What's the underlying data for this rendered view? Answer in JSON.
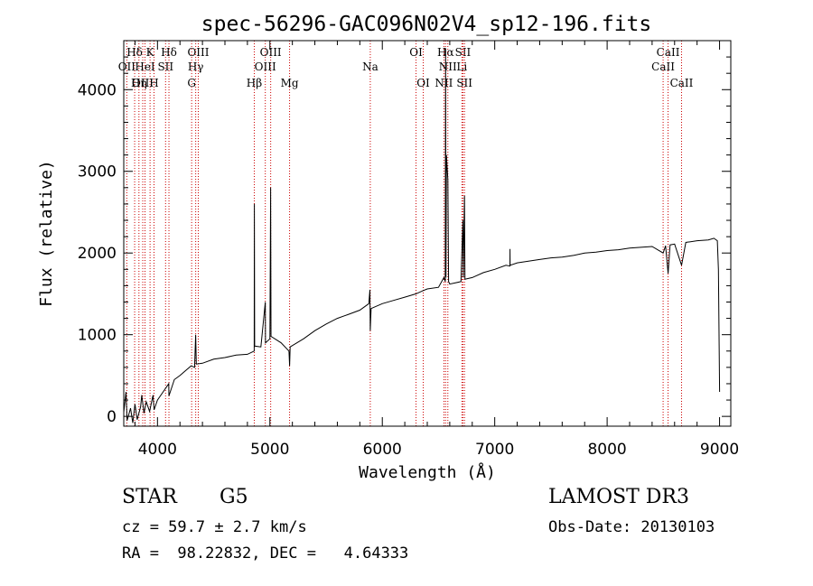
{
  "chart_data": {
    "type": "line",
    "title": "spec-56296-GAC096N02V4_sp12-196.fits",
    "xlabel": "Wavelength (Å)",
    "ylabel": "Flux (relative)",
    "xlim": [
      3700,
      9100
    ],
    "ylim": [
      -120,
      4600
    ],
    "x_ticks": [
      4000,
      5000,
      6000,
      7000,
      8000,
      9000
    ],
    "y_ticks": [
      0,
      1000,
      2000,
      3000,
      4000
    ],
    "grid": false,
    "series": [
      {
        "name": "spectrum",
        "points": [
          [
            3700,
            50
          ],
          [
            3720,
            300
          ],
          [
            3730,
            -50
          ],
          [
            3760,
            100
          ],
          [
            3780,
            -80
          ],
          [
            3800,
            150
          ],
          [
            3820,
            -40
          ],
          [
            3850,
            120
          ],
          [
            3860,
            260
          ],
          [
            3880,
            40
          ],
          [
            3900,
            180
          ],
          [
            3930,
            60
          ],
          [
            3960,
            260
          ],
          [
            3970,
            80
          ],
          [
            4000,
            200
          ],
          [
            4050,
            300
          ],
          [
            4100,
            400
          ],
          [
            4102,
            250
          ],
          [
            4150,
            450
          ],
          [
            4200,
            500
          ],
          [
            4250,
            560
          ],
          [
            4300,
            620
          ],
          [
            4330,
            600
          ],
          [
            4340,
            1000
          ],
          [
            4345,
            640
          ],
          [
            4400,
            650
          ],
          [
            4500,
            700
          ],
          [
            4600,
            720
          ],
          [
            4700,
            750
          ],
          [
            4800,
            760
          ],
          [
            4860,
            800
          ],
          [
            4862,
            2600
          ],
          [
            4864,
            860
          ],
          [
            4920,
            850
          ],
          [
            4959,
            1400
          ],
          [
            4961,
            900
          ],
          [
            5000,
            950
          ],
          [
            5007,
            2800
          ],
          [
            5010,
            980
          ],
          [
            5100,
            900
          ],
          [
            5170,
            800
          ],
          [
            5175,
            620
          ],
          [
            5180,
            850
          ],
          [
            5300,
            950
          ],
          [
            5400,
            1050
          ],
          [
            5500,
            1130
          ],
          [
            5600,
            1200
          ],
          [
            5700,
            1250
          ],
          [
            5800,
            1300
          ],
          [
            5880,
            1380
          ],
          [
            5890,
            1550
          ],
          [
            5893,
            1050
          ],
          [
            5900,
            1320
          ],
          [
            6000,
            1380
          ],
          [
            6100,
            1420
          ],
          [
            6200,
            1460
          ],
          [
            6300,
            1500
          ],
          [
            6364,
            1540
          ],
          [
            6400,
            1560
          ],
          [
            6500,
            1580
          ],
          [
            6548,
            1700
          ],
          [
            6560,
            1650
          ],
          [
            6563,
            4500
          ],
          [
            6566,
            1700
          ],
          [
            6570,
            3200
          ],
          [
            6583,
            2900
          ],
          [
            6590,
            1650
          ],
          [
            6600,
            1620
          ],
          [
            6700,
            1650
          ],
          [
            6717,
            2400
          ],
          [
            6720,
            1700
          ],
          [
            6731,
            2700
          ],
          [
            6735,
            1680
          ],
          [
            6800,
            1700
          ],
          [
            6900,
            1760
          ],
          [
            7000,
            1800
          ],
          [
            7100,
            1850
          ],
          [
            7135,
            1840
          ],
          [
            7136,
            2050
          ],
          [
            7137,
            1850
          ],
          [
            7200,
            1880
          ],
          [
            7300,
            1900
          ],
          [
            7400,
            1920
          ],
          [
            7500,
            1940
          ],
          [
            7600,
            1950
          ],
          [
            7700,
            1970
          ],
          [
            7800,
            2000
          ],
          [
            7900,
            2010
          ],
          [
            8000,
            2030
          ],
          [
            8100,
            2040
          ],
          [
            8200,
            2060
          ],
          [
            8300,
            2070
          ],
          [
            8400,
            2080
          ],
          [
            8498,
            2000
          ],
          [
            8520,
            2090
          ],
          [
            8542,
            1750
          ],
          [
            8560,
            2100
          ],
          [
            8600,
            2110
          ],
          [
            8662,
            1850
          ],
          [
            8700,
            2130
          ],
          [
            8800,
            2150
          ],
          [
            8900,
            2160
          ],
          [
            8950,
            2180
          ],
          [
            8980,
            2150
          ],
          [
            8990,
            1800
          ],
          [
            9000,
            300
          ]
        ]
      }
    ],
    "lines": [
      {
        "label": "Hδ",
        "x": 3797,
        "row": 1
      },
      {
        "label": "OII",
        "x": 3727,
        "row": 2
      },
      {
        "label": "OIII",
        "x": 3869,
        "row": 3
      },
      {
        "label": "K",
        "x": 3934,
        "row": 1
      },
      {
        "label": "HeI",
        "x": 3889,
        "row": 2
      },
      {
        "label": "Hη",
        "x": 3835,
        "row": 3
      },
      {
        "label": "H",
        "x": 3969,
        "row": 3
      },
      {
        "label": "SII",
        "x": 4072,
        "row": 2
      },
      {
        "label": "Hδ",
        "x": 4102,
        "row": 1
      },
      {
        "label": "OIII",
        "x": 4363,
        "row": 1
      },
      {
        "label": "Hγ",
        "x": 4340,
        "row": 2
      },
      {
        "label": "G",
        "x": 4304,
        "row": 3
      },
      {
        "label": "Hβ",
        "x": 4861,
        "row": 3
      },
      {
        "label": "OIII",
        "x": 5007,
        "row": 1
      },
      {
        "label": "OIII",
        "x": 4959,
        "row": 2
      },
      {
        "label": "Mg",
        "x": 5175,
        "row": 3
      },
      {
        "label": "Na",
        "x": 5893,
        "row": 2
      },
      {
        "label": "OI",
        "x": 6300,
        "row": 1
      },
      {
        "label": "OI",
        "x": 6364,
        "row": 3
      },
      {
        "label": "Hα",
        "x": 6563,
        "row": 1
      },
      {
        "label": "SII",
        "x": 6717,
        "row": 1
      },
      {
        "label": "NII",
        "x": 6583,
        "row": 2
      },
      {
        "label": "Li",
        "x": 6708,
        "row": 2
      },
      {
        "label": "NII",
        "x": 6548,
        "row": 3
      },
      {
        "label": "SII",
        "x": 6731,
        "row": 3
      },
      {
        "label": "CaII",
        "x": 8542,
        "row": 1
      },
      {
        "label": "CaII",
        "x": 8498,
        "row": 2
      },
      {
        "label": "CaII",
        "x": 8662,
        "row": 3
      }
    ]
  },
  "info": {
    "object_class": "STAR",
    "subclass": "G5",
    "survey": "LAMOST DR3",
    "redshift_text": "cz = 59.7 ± 2.7 km/s",
    "obs_date_text": "Obs-Date: 20130103",
    "coords_text": "RA =  98.22832, DEC =   4.64333"
  },
  "colors": {
    "line_marker": "#cc0000",
    "spectrum": "#000000",
    "axes": "#000000"
  }
}
